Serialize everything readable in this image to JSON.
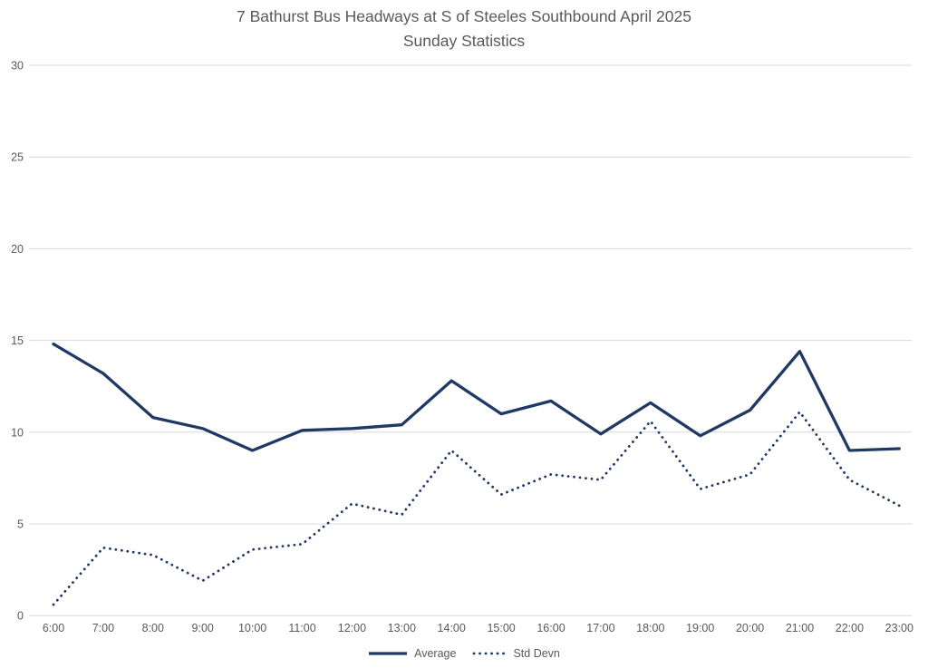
{
  "chart_data": {
    "type": "line",
    "title": "7 Bathurst Bus Headways at S of Steeles Southbound April 2025",
    "subtitle": "Sunday Statistics",
    "categories": [
      "6:00",
      "7:00",
      "8:00",
      "9:00",
      "10:00",
      "11:00",
      "12:00",
      "13:00",
      "14:00",
      "15:00",
      "16:00",
      "17:00",
      "18:00",
      "19:00",
      "20:00",
      "21:00",
      "22:00",
      "23:00"
    ],
    "series": [
      {
        "name": "Average",
        "line_style": "solid",
        "values": [
          14.8,
          13.2,
          10.8,
          10.2,
          9.0,
          10.1,
          10.2,
          10.4,
          12.8,
          11.0,
          11.7,
          9.9,
          11.6,
          9.8,
          11.2,
          14.4,
          9.0,
          9.1
        ]
      },
      {
        "name": "Std Devn",
        "line_style": "dotted",
        "values": [
          0.6,
          3.7,
          3.3,
          1.9,
          3.6,
          3.9,
          6.1,
          5.5,
          9.0,
          6.6,
          7.7,
          7.4,
          10.6,
          6.9,
          7.7,
          11.1,
          7.4,
          6.0
        ]
      }
    ],
    "xlabel": "",
    "ylabel": "",
    "ylim": [
      0,
      30
    ],
    "yticks": [
      0,
      5,
      10,
      15,
      20,
      25,
      30
    ],
    "grid": true,
    "legend_position": "bottom",
    "colors": {
      "series": "#1f3864",
      "text": "#595959",
      "grid": "#d9d9d9",
      "background": "#ffffff"
    }
  }
}
